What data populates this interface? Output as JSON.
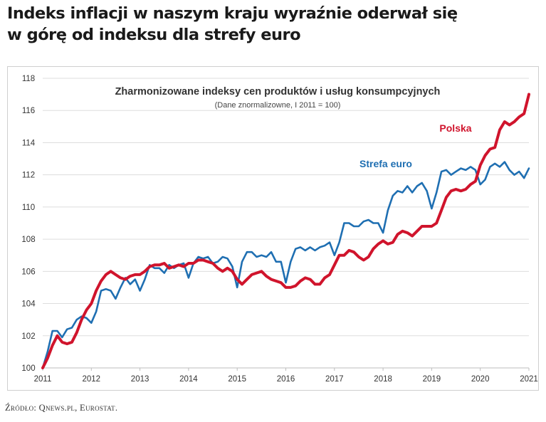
{
  "headline": {
    "line1": "Indeks inflacji w naszym kraju wyraźnie oderwał się",
    "line2": "w górę od indeksu dla strefy euro"
  },
  "source": "Źródło: Qnews.pl, Eurostat.",
  "colors": {
    "polska": "#d0142c",
    "euro": "#1f6fb2",
    "grid": "#dddddd",
    "text": "#333333"
  },
  "chart_data": {
    "type": "line",
    "title": "Zharmonizowane indeksy cen produktów i usług konsumpcyjnych",
    "subtitle": "(Dane znormalizowne, I 2011 = 100)",
    "xlabel": "",
    "ylabel": "",
    "xlim": [
      2011,
      2021
    ],
    "ylim": [
      100,
      118
    ],
    "x_ticks": [
      "2011",
      "2012",
      "2013",
      "2014",
      "2015",
      "2016",
      "2017",
      "2018",
      "2019",
      "2020",
      "2021"
    ],
    "y_ticks": [
      "100",
      "102",
      "104",
      "106",
      "108",
      "110",
      "112",
      "114",
      "116",
      "118"
    ],
    "grid": true,
    "series": [
      {
        "name": "Polska",
        "label_text": "Polska",
        "color": "#d0142c",
        "points": [
          [
            2011.0,
            100.0
          ],
          [
            2011.1,
            100.6
          ],
          [
            2011.2,
            101.4
          ],
          [
            2011.3,
            102.0
          ],
          [
            2011.4,
            101.6
          ],
          [
            2011.5,
            101.5
          ],
          [
            2011.6,
            101.6
          ],
          [
            2011.7,
            102.2
          ],
          [
            2011.8,
            103.0
          ],
          [
            2011.9,
            103.6
          ],
          [
            2012.0,
            104.0
          ],
          [
            2012.1,
            104.8
          ],
          [
            2012.2,
            105.4
          ],
          [
            2012.3,
            105.8
          ],
          [
            2012.4,
            106.0
          ],
          [
            2012.5,
            105.8
          ],
          [
            2012.6,
            105.6
          ],
          [
            2012.7,
            105.5
          ],
          [
            2012.8,
            105.7
          ],
          [
            2012.9,
            105.8
          ],
          [
            2013.0,
            105.8
          ],
          [
            2013.1,
            106.0
          ],
          [
            2013.2,
            106.3
          ],
          [
            2013.3,
            106.4
          ],
          [
            2013.4,
            106.4
          ],
          [
            2013.5,
            106.5
          ],
          [
            2013.6,
            106.2
          ],
          [
            2013.7,
            106.3
          ],
          [
            2013.8,
            106.4
          ],
          [
            2013.9,
            106.3
          ],
          [
            2014.0,
            106.5
          ],
          [
            2014.1,
            106.5
          ],
          [
            2014.2,
            106.7
          ],
          [
            2014.3,
            106.7
          ],
          [
            2014.4,
            106.6
          ],
          [
            2014.5,
            106.5
          ],
          [
            2014.6,
            106.2
          ],
          [
            2014.7,
            106.0
          ],
          [
            2014.8,
            106.2
          ],
          [
            2014.9,
            106.0
          ],
          [
            2015.0,
            105.5
          ],
          [
            2015.1,
            105.2
          ],
          [
            2015.2,
            105.5
          ],
          [
            2015.3,
            105.8
          ],
          [
            2015.4,
            105.9
          ],
          [
            2015.5,
            106.0
          ],
          [
            2015.6,
            105.7
          ],
          [
            2015.7,
            105.5
          ],
          [
            2015.8,
            105.4
          ],
          [
            2015.9,
            105.3
          ],
          [
            2016.0,
            105.0
          ],
          [
            2016.1,
            105.0
          ],
          [
            2016.2,
            105.1
          ],
          [
            2016.3,
            105.4
          ],
          [
            2016.4,
            105.6
          ],
          [
            2016.5,
            105.5
          ],
          [
            2016.6,
            105.2
          ],
          [
            2016.7,
            105.2
          ],
          [
            2016.8,
            105.6
          ],
          [
            2016.9,
            105.8
          ],
          [
            2017.0,
            106.4
          ],
          [
            2017.1,
            107.0
          ],
          [
            2017.2,
            107.0
          ],
          [
            2017.3,
            107.3
          ],
          [
            2017.4,
            107.2
          ],
          [
            2017.5,
            106.9
          ],
          [
            2017.6,
            106.7
          ],
          [
            2017.7,
            106.9
          ],
          [
            2017.8,
            107.4
          ],
          [
            2017.9,
            107.7
          ],
          [
            2018.0,
            107.9
          ],
          [
            2018.1,
            107.7
          ],
          [
            2018.2,
            107.8
          ],
          [
            2018.3,
            108.3
          ],
          [
            2018.4,
            108.5
          ],
          [
            2018.5,
            108.4
          ],
          [
            2018.6,
            108.2
          ],
          [
            2018.7,
            108.5
          ],
          [
            2018.8,
            108.8
          ],
          [
            2018.9,
            108.8
          ],
          [
            2019.0,
            108.8
          ],
          [
            2019.1,
            109.0
          ],
          [
            2019.2,
            109.8
          ],
          [
            2019.3,
            110.6
          ],
          [
            2019.4,
            111.0
          ],
          [
            2019.5,
            111.1
          ],
          [
            2019.6,
            111.0
          ],
          [
            2019.7,
            111.1
          ],
          [
            2019.8,
            111.4
          ],
          [
            2019.9,
            111.6
          ],
          [
            2020.0,
            112.6
          ],
          [
            2020.1,
            113.2
          ],
          [
            2020.2,
            113.6
          ],
          [
            2020.3,
            113.7
          ],
          [
            2020.4,
            114.8
          ],
          [
            2020.5,
            115.3
          ],
          [
            2020.6,
            115.1
          ],
          [
            2020.7,
            115.3
          ],
          [
            2020.8,
            115.6
          ],
          [
            2020.9,
            115.8
          ],
          [
            2021.0,
            117.0
          ]
        ]
      },
      {
        "name": "Strefa euro",
        "label_text": "Strefa euro",
        "color": "#1f6fb2",
        "points": [
          [
            2011.0,
            100.0
          ],
          [
            2011.1,
            101.0
          ],
          [
            2011.2,
            102.3
          ],
          [
            2011.3,
            102.3
          ],
          [
            2011.4,
            101.9
          ],
          [
            2011.5,
            102.4
          ],
          [
            2011.6,
            102.5
          ],
          [
            2011.7,
            103.0
          ],
          [
            2011.8,
            103.2
          ],
          [
            2011.9,
            103.1
          ],
          [
            2012.0,
            102.8
          ],
          [
            2012.1,
            103.5
          ],
          [
            2012.2,
            104.8
          ],
          [
            2012.3,
            104.9
          ],
          [
            2012.4,
            104.8
          ],
          [
            2012.5,
            104.3
          ],
          [
            2012.6,
            105.0
          ],
          [
            2012.7,
            105.6
          ],
          [
            2012.8,
            105.2
          ],
          [
            2012.9,
            105.5
          ],
          [
            2013.0,
            104.8
          ],
          [
            2013.1,
            105.5
          ],
          [
            2013.2,
            106.4
          ],
          [
            2013.3,
            106.2
          ],
          [
            2013.4,
            106.2
          ],
          [
            2013.5,
            105.9
          ],
          [
            2013.6,
            106.4
          ],
          [
            2013.7,
            106.2
          ],
          [
            2013.8,
            106.4
          ],
          [
            2013.9,
            106.5
          ],
          [
            2014.0,
            105.6
          ],
          [
            2014.1,
            106.5
          ],
          [
            2014.2,
            106.9
          ],
          [
            2014.3,
            106.8
          ],
          [
            2014.4,
            106.9
          ],
          [
            2014.5,
            106.5
          ],
          [
            2014.6,
            106.6
          ],
          [
            2014.7,
            106.9
          ],
          [
            2014.8,
            106.8
          ],
          [
            2014.9,
            106.3
          ],
          [
            2015.0,
            105.0
          ],
          [
            2015.1,
            106.6
          ],
          [
            2015.2,
            107.2
          ],
          [
            2015.3,
            107.2
          ],
          [
            2015.4,
            106.9
          ],
          [
            2015.5,
            107.0
          ],
          [
            2015.6,
            106.9
          ],
          [
            2015.7,
            107.2
          ],
          [
            2015.8,
            106.6
          ],
          [
            2015.9,
            106.6
          ],
          [
            2016.0,
            105.3
          ],
          [
            2016.1,
            106.6
          ],
          [
            2016.2,
            107.4
          ],
          [
            2016.3,
            107.5
          ],
          [
            2016.4,
            107.3
          ],
          [
            2016.5,
            107.5
          ],
          [
            2016.6,
            107.3
          ],
          [
            2016.7,
            107.5
          ],
          [
            2016.8,
            107.6
          ],
          [
            2016.9,
            107.8
          ],
          [
            2017.0,
            107.0
          ],
          [
            2017.1,
            107.8
          ],
          [
            2017.2,
            109.0
          ],
          [
            2017.3,
            109.0
          ],
          [
            2017.4,
            108.8
          ],
          [
            2017.5,
            108.8
          ],
          [
            2017.6,
            109.1
          ],
          [
            2017.7,
            109.2
          ],
          [
            2017.8,
            109.0
          ],
          [
            2017.9,
            109.0
          ],
          [
            2018.0,
            108.4
          ],
          [
            2018.1,
            109.8
          ],
          [
            2018.2,
            110.7
          ],
          [
            2018.3,
            111.0
          ],
          [
            2018.4,
            110.9
          ],
          [
            2018.5,
            111.3
          ],
          [
            2018.6,
            110.9
          ],
          [
            2018.7,
            111.3
          ],
          [
            2018.8,
            111.5
          ],
          [
            2018.9,
            111.0
          ],
          [
            2019.0,
            109.9
          ],
          [
            2019.1,
            110.9
          ],
          [
            2019.2,
            112.2
          ],
          [
            2019.3,
            112.3
          ],
          [
            2019.4,
            112.0
          ],
          [
            2019.5,
            112.2
          ],
          [
            2019.6,
            112.4
          ],
          [
            2019.7,
            112.3
          ],
          [
            2019.8,
            112.5
          ],
          [
            2019.9,
            112.3
          ],
          [
            2020.0,
            111.4
          ],
          [
            2020.1,
            111.7
          ],
          [
            2020.2,
            112.5
          ],
          [
            2020.3,
            112.7
          ],
          [
            2020.4,
            112.5
          ],
          [
            2020.5,
            112.8
          ],
          [
            2020.6,
            112.3
          ],
          [
            2020.7,
            112.0
          ],
          [
            2020.8,
            112.2
          ],
          [
            2020.9,
            111.8
          ],
          [
            2021.0,
            112.4
          ]
        ]
      }
    ]
  }
}
